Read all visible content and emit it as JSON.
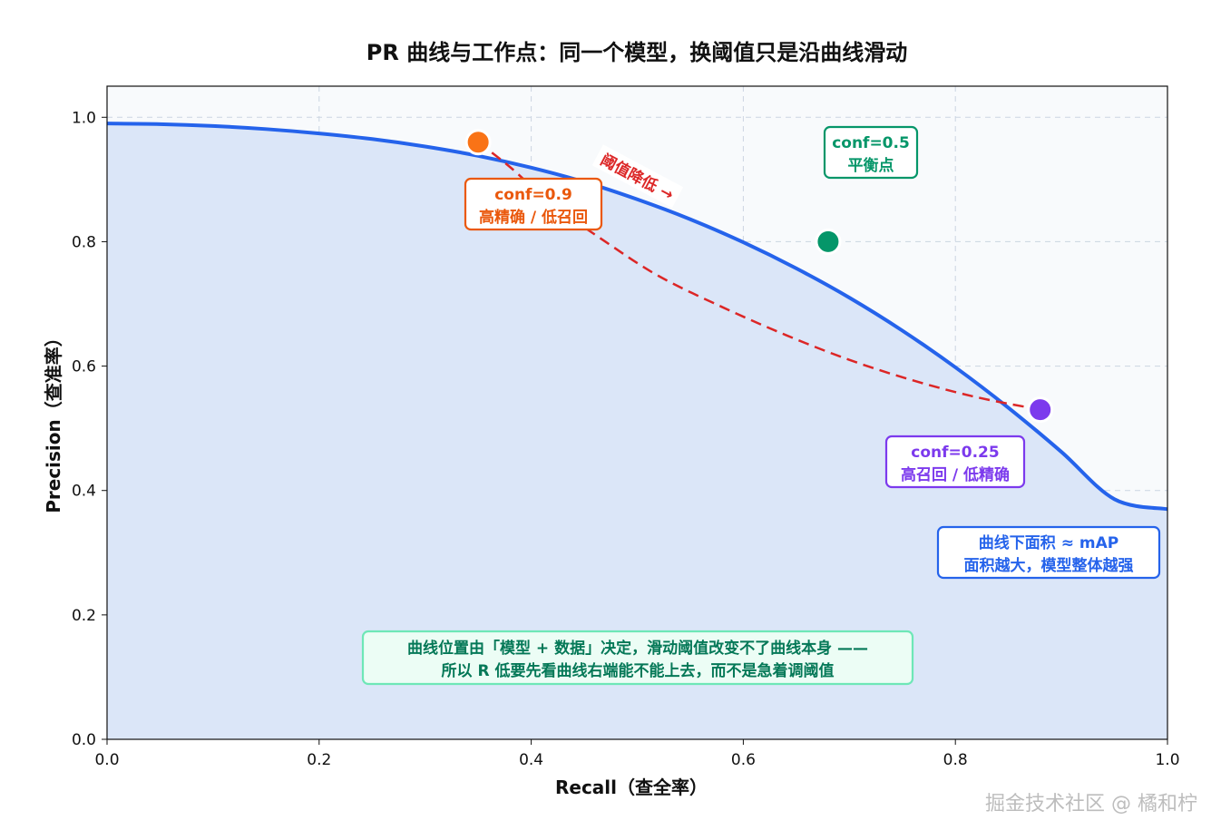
{
  "chart_data": {
    "type": "line",
    "title": "PR 曲线与工作点：同一个模型，换阈值只是沿曲线滑动",
    "xlabel": "Recall（查全率）",
    "ylabel": "Precision（查准率）",
    "xlim": [
      0.0,
      1.0
    ],
    "ylim": [
      0.0,
      1.05
    ],
    "xticks": [
      "0.0",
      "0.2",
      "0.4",
      "0.6",
      "0.8",
      "1.0"
    ],
    "yticks": [
      "0.0",
      "0.2",
      "0.4",
      "0.6",
      "0.8",
      "1.0"
    ],
    "grid": true,
    "series": [
      {
        "x": [
          0.0,
          0.05,
          0.1,
          0.15,
          0.2,
          0.25,
          0.3,
          0.35,
          0.4,
          0.45,
          0.5,
          0.55,
          0.6,
          0.65,
          0.7,
          0.75,
          0.8,
          0.85,
          0.9,
          0.95,
          1.0
        ],
        "y": [
          0.99,
          0.989,
          0.986,
          0.981,
          0.974,
          0.965,
          0.953,
          0.938,
          0.919,
          0.896,
          0.868,
          0.836,
          0.799,
          0.757,
          0.71,
          0.657,
          0.598,
          0.533,
          0.462,
          0.386,
          0.37
        ],
        "color": "#2563eb",
        "fill": "#dbe6f8"
      }
    ],
    "points": [
      {
        "x": 0.35,
        "y": 0.96,
        "color": "#f97316"
      },
      {
        "x": 0.68,
        "y": 0.8,
        "color": "#059669"
      },
      {
        "x": 0.88,
        "y": 0.53,
        "color": "#7c3aed"
      }
    ],
    "threshold_path": {
      "x": [
        0.35,
        0.38,
        0.42,
        0.47,
        0.52,
        0.58,
        0.64,
        0.7,
        0.76,
        0.82,
        0.88
      ],
      "y": [
        0.96,
        0.92,
        0.86,
        0.8,
        0.745,
        0.695,
        0.65,
        0.61,
        0.577,
        0.55,
        0.53
      ],
      "color": "#dc2626"
    },
    "annotations": [
      {
        "lines": [
          "conf=0.9",
          "高精确 / 低召回"
        ],
        "color": "#ea580c",
        "bg": "#ffffff"
      },
      {
        "lines": [
          "conf=0.5",
          "平衡点"
        ],
        "color": "#059669",
        "bg": "#ffffff"
      },
      {
        "lines": [
          "conf=0.25",
          "高召回 / 低精确"
        ],
        "color": "#7c3aed",
        "bg": "#ffffff"
      },
      {
        "lines": [
          "曲线下面积 ≈ mAP",
          "面积越大，模型整体越强"
        ],
        "color": "#2563eb",
        "bg": "#ffffff"
      },
      {
        "lines": [
          "曲线位置由「模型 + 数据」决定，滑动阈值改变不了曲线本身 ——",
          "所以 R 低要先看曲线右端能不能上去，而不是急着调阈值"
        ],
        "color": "#047857",
        "bg": "#ecfdf5",
        "border": "#6ee7b7"
      }
    ],
    "arrow_label": "阈值降低 →",
    "arrow_label_color": "#dc2626"
  },
  "watermark": "掘金技术社区 @ 橘和柠"
}
